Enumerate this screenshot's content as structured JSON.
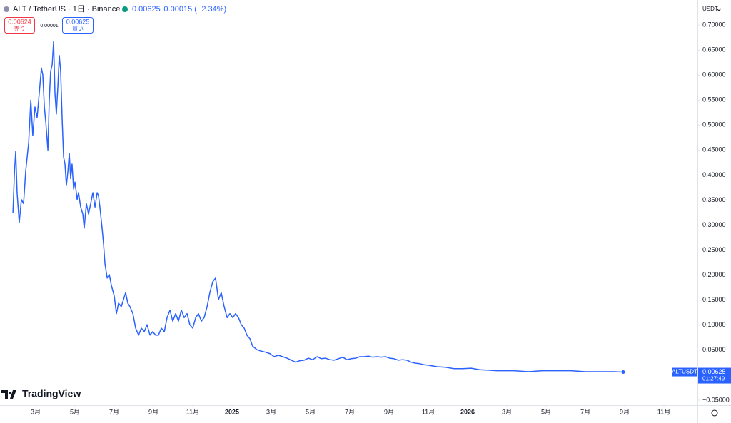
{
  "chart_data": {
    "type": "line",
    "title": "ALT / TetherUS · 1日 · Binance",
    "last_price": 0.00625,
    "change": "−0.00015 (−2.34%)",
    "quote": {
      "sell": "0.00624",
      "sell_label": "売り",
      "spread": "0.00001",
      "buy": "0.00625",
      "buy_label": "買い"
    },
    "y_axis_unit": "USDT",
    "countdown": "01:27:49",
    "logo": "TradingView",
    "x": [
      0.84,
      0.91,
      0.98,
      1.05,
      1.16,
      1.27,
      1.38,
      1.49,
      1.64,
      1.75,
      1.85,
      1.96,
      2.07,
      2.18,
      2.29,
      2.36,
      2.44,
      2.51,
      2.62,
      2.69,
      2.76,
      2.84,
      2.91,
      2.98,
      3.05,
      3.13,
      3.2,
      3.27,
      3.35,
      3.42,
      3.49,
      3.56,
      3.64,
      3.71,
      3.78,
      3.85,
      3.93,
      4.0,
      4.11,
      4.18,
      4.29,
      4.4,
      4.47,
      4.58,
      4.69,
      4.8,
      4.91,
      5.02,
      5.13,
      5.2,
      5.27,
      5.38,
      5.45,
      5.53,
      5.64,
      5.75,
      5.85,
      6.0,
      6.11,
      6.22,
      6.36,
      6.47,
      6.58,
      6.69,
      6.8,
      6.95,
      7.09,
      7.24,
      7.38,
      7.53,
      7.67,
      7.82,
      7.96,
      8.11,
      8.25,
      8.4,
      8.55,
      8.69,
      8.84,
      8.98,
      9.13,
      9.27,
      9.42,
      9.56,
      9.71,
      9.85,
      10.0,
      10.15,
      10.29,
      10.44,
      10.58,
      10.73,
      10.87,
      11.02,
      11.16,
      11.31,
      11.45,
      11.6,
      11.75,
      11.89,
      12.04,
      12.18,
      12.33,
      12.47,
      12.62,
      12.76,
      12.91,
      13.05,
      13.27,
      13.49,
      13.71,
      13.93,
      14.15,
      14.36,
      14.58,
      14.8,
      15.02,
      15.24,
      15.45,
      15.67,
      15.89,
      16.11,
      16.33,
      16.55,
      16.76,
      16.98,
      17.2,
      17.42,
      17.64,
      17.85,
      18.07,
      18.29,
      18.51,
      18.73,
      18.95,
      19.16,
      19.38,
      19.6,
      19.82,
      20.04,
      20.25,
      20.47,
      20.69,
      20.91,
      21.13,
      21.35,
      21.56,
      21.78,
      22.0,
      22.44,
      22.87,
      23.31,
      23.75,
      24.18,
      24.62,
      25.05,
      25.49,
      25.93,
      26.36,
      27.09,
      27.82,
      28.55,
      29.27,
      30.0,
      30.73,
      31.45,
      31.93
    ],
    "series": [
      {
        "name": "ALTUSDT",
        "color": "#2962ff",
        "values": [
          0.325,
          0.4,
          0.448,
          0.365,
          0.305,
          0.351,
          0.343,
          0.408,
          0.465,
          0.55,
          0.479,
          0.536,
          0.515,
          0.564,
          0.614,
          0.6,
          0.536,
          0.507,
          0.45,
          0.55,
          0.607,
          0.621,
          0.667,
          0.564,
          0.522,
          0.579,
          0.639,
          0.607,
          0.507,
          0.436,
          0.422,
          0.379,
          0.408,
          0.443,
          0.393,
          0.422,
          0.372,
          0.386,
          0.351,
          0.365,
          0.336,
          0.322,
          0.294,
          0.343,
          0.322,
          0.343,
          0.365,
          0.336,
          0.365,
          0.358,
          0.336,
          0.294,
          0.265,
          0.222,
          0.194,
          0.201,
          0.18,
          0.158,
          0.123,
          0.144,
          0.137,
          0.151,
          0.165,
          0.144,
          0.137,
          0.123,
          0.094,
          0.08,
          0.094,
          0.087,
          0.101,
          0.08,
          0.087,
          0.08,
          0.08,
          0.094,
          0.087,
          0.115,
          0.13,
          0.108,
          0.123,
          0.108,
          0.13,
          0.115,
          0.123,
          0.101,
          0.094,
          0.115,
          0.123,
          0.108,
          0.115,
          0.137,
          0.165,
          0.187,
          0.194,
          0.151,
          0.165,
          0.137,
          0.115,
          0.123,
          0.115,
          0.123,
          0.115,
          0.101,
          0.094,
          0.08,
          0.073,
          0.058,
          0.051,
          0.048,
          0.046,
          0.043,
          0.037,
          0.04,
          0.037,
          0.034,
          0.03,
          0.026,
          0.029,
          0.03,
          0.034,
          0.031,
          0.037,
          0.033,
          0.034,
          0.031,
          0.03,
          0.033,
          0.036,
          0.031,
          0.033,
          0.034,
          0.037,
          0.037,
          0.038,
          0.036,
          0.037,
          0.036,
          0.037,
          0.034,
          0.033,
          0.03,
          0.031,
          0.03,
          0.026,
          0.024,
          0.023,
          0.021,
          0.02,
          0.017,
          0.016,
          0.013,
          0.013,
          0.014,
          0.011,
          0.01,
          0.009,
          0.009,
          0.009,
          0.007,
          0.009,
          0.009,
          0.009,
          0.007,
          0.007,
          0.007,
          0.00625
        ]
      }
    ],
    "xlim": [
      0.18,
      35.71
    ],
    "ylim": [
      -0.06,
      0.75
    ],
    "grid": false,
    "xticks": [
      {
        "value": 2,
        "label": "3月"
      },
      {
        "value": 4,
        "label": "5月"
      },
      {
        "value": 6,
        "label": "7月"
      },
      {
        "value": 8,
        "label": "9月"
      },
      {
        "value": 10,
        "label": "11月"
      },
      {
        "value": 12,
        "label": "2025"
      },
      {
        "value": 14,
        "label": "3月"
      },
      {
        "value": 16,
        "label": "5月"
      },
      {
        "value": 18,
        "label": "7月"
      },
      {
        "value": 20,
        "label": "9月"
      },
      {
        "value": 22,
        "label": "11月"
      },
      {
        "value": 24,
        "label": "2026"
      },
      {
        "value": 26,
        "label": "3月"
      },
      {
        "value": 28,
        "label": "5月"
      },
      {
        "value": 30,
        "label": "7月"
      },
      {
        "value": 32,
        "label": "9月"
      },
      {
        "value": 34,
        "label": "11月"
      }
    ],
    "yticks": [
      {
        "value": -0.05,
        "label": "−0.05000"
      },
      {
        "value": 0.05,
        "label": "0.05000"
      },
      {
        "value": 0.1,
        "label": "0.10000"
      },
      {
        "value": 0.15,
        "label": "0.15000"
      },
      {
        "value": 0.2,
        "label": "0.20000"
      },
      {
        "value": 0.25,
        "label": "0.25000"
      },
      {
        "value": 0.3,
        "label": "0.30000"
      },
      {
        "value": 0.35,
        "label": "0.35000"
      },
      {
        "value": 0.4,
        "label": "0.40000"
      },
      {
        "value": 0.45,
        "label": "0.45000"
      },
      {
        "value": 0.5,
        "label": "0.50000"
      },
      {
        "value": 0.55,
        "label": "0.55000"
      },
      {
        "value": 0.6,
        "label": "0.60000"
      },
      {
        "value": 0.65,
        "label": "0.65000"
      },
      {
        "value": 0.7,
        "label": "0.70000"
      }
    ]
  }
}
